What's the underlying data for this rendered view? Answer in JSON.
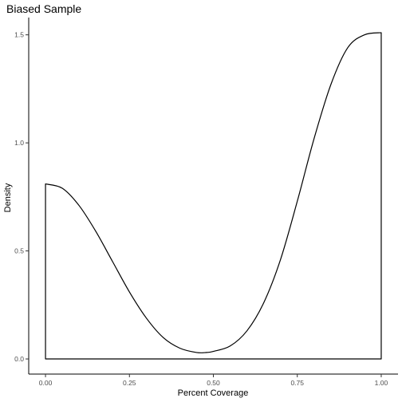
{
  "chart_data": {
    "type": "area",
    "title": "Biased Sample",
    "xlabel": "Percent Coverage",
    "ylabel": "Density",
    "xlim": [
      -0.05,
      1.05
    ],
    "ylim": [
      -0.07,
      1.58
    ],
    "x_ticks": [
      0.0,
      0.25,
      0.5,
      0.75,
      1.0
    ],
    "x_tick_labels": [
      "0.00",
      "0.25",
      "0.50",
      "0.75",
      "1.00"
    ],
    "y_ticks": [
      0.0,
      0.5,
      1.0,
      1.5
    ],
    "y_tick_labels": [
      "0.0",
      "0.5",
      "1.0",
      "1.5"
    ],
    "grid": false,
    "legend": "none",
    "colors": {
      "line": "#000000",
      "fill": "none",
      "axis": "#000000",
      "tick_text": "#4d4d4d"
    },
    "series": [
      {
        "x": [
          0.0,
          0.05,
          0.1,
          0.15,
          0.2,
          0.25,
          0.3,
          0.35,
          0.4,
          0.45,
          0.48,
          0.5,
          0.55,
          0.6,
          0.65,
          0.7,
          0.75,
          0.8,
          0.85,
          0.9,
          0.95,
          1.0
        ],
        "values": [
          0.81,
          0.79,
          0.71,
          0.59,
          0.45,
          0.31,
          0.19,
          0.1,
          0.05,
          0.03,
          0.03,
          0.035,
          0.06,
          0.13,
          0.26,
          0.46,
          0.73,
          1.02,
          1.27,
          1.44,
          1.5,
          1.51
        ]
      }
    ]
  }
}
